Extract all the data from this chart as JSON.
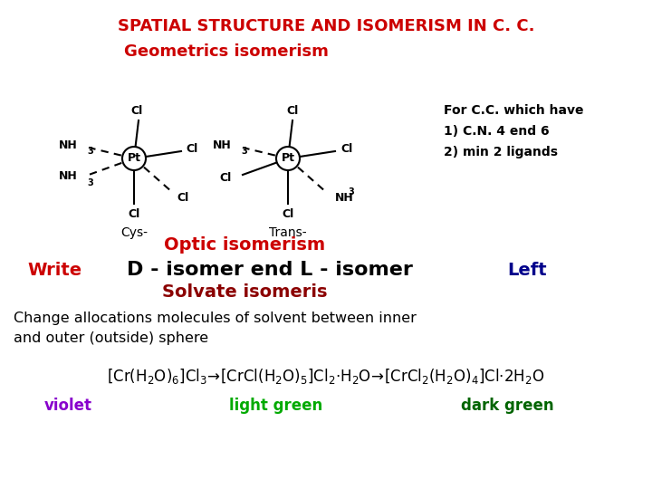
{
  "title": "SPATIAL STRUCTURE AND ISOMERISM IN C. C.",
  "title_color": "#CC0000",
  "bg_color": "#FFFFFF",
  "subtitle": "Geometrics isomerism",
  "subtitle_color": "#CC0000",
  "optic_title": "Optic isomerism",
  "optic_color": "#CC0000",
  "write_label": "Write",
  "write_color": "#CC0000",
  "isomer_text": "D - isomer end L - isomer",
  "isomer_color": "#000000",
  "left_text": "Left",
  "left_color": "#00008B",
  "solvate_title": "Solvate isomeris",
  "solvate_color": "#8B0000",
  "change_line1": "Change allocations molecules of solvent between inner",
  "change_line2": "and outer (outside) sphere",
  "change_color": "#000000",
  "formula_color": "#000000",
  "violet_text": "violet",
  "violet_color": "#8800CC",
  "light_green_text": "light green",
  "light_green_color": "#00AA00",
  "dark_green_text": "dark green",
  "dark_green_color": "#006400",
  "for_cc_text": "For C.C. which have\n1) C.N. 4 end 6\n2) min 2 ligands",
  "for_cc_color": "#000000",
  "cys_label": "Cys-",
  "trans_label": "Trans-"
}
